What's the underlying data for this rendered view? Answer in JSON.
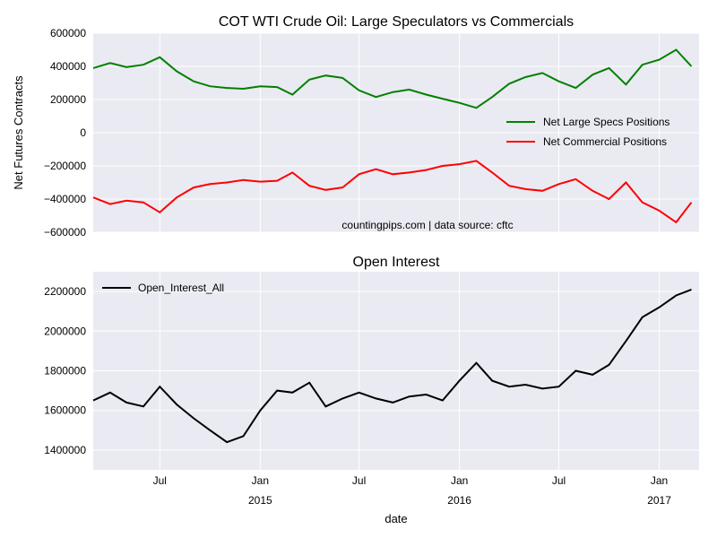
{
  "chart_data": [
    {
      "type": "line",
      "title": "COT WTI Crude Oil: Large Speculators vs Commercials",
      "ylabel": "Net Futures Contracts",
      "xlabel": "",
      "ylim": [
        -600000,
        600000
      ],
      "yticks": [
        "600000",
        "400000",
        "200000",
        "0",
        "−200000",
        "−400000",
        "−600000"
      ],
      "ytick_values": [
        600000,
        400000,
        200000,
        0,
        -200000,
        -400000,
        -600000
      ],
      "annotation": "countingpips.com | data source: cftc",
      "legend_position": "center-right",
      "grid": true,
      "series": [
        {
          "name": "Net Large Specs Positions",
          "color": "#008000",
          "x": [
            "2014-03",
            "2014-04",
            "2014-05",
            "2014-06",
            "2014-07",
            "2014-08",
            "2014-09",
            "2014-10",
            "2014-11",
            "2014-12",
            "2015-01",
            "2015-02",
            "2015-03",
            "2015-04",
            "2015-05",
            "2015-06",
            "2015-07",
            "2015-08",
            "2015-09",
            "2015-10",
            "2015-11",
            "2015-12",
            "2016-01",
            "2016-02",
            "2016-03",
            "2016-04",
            "2016-05",
            "2016-06",
            "2016-07",
            "2016-08",
            "2016-09",
            "2016-10",
            "2016-11",
            "2016-12",
            "2017-01",
            "2017-02",
            "2017-03"
          ],
          "values": [
            390000,
            420000,
            395000,
            410000,
            455000,
            370000,
            310000,
            280000,
            270000,
            265000,
            280000,
            275000,
            230000,
            320000,
            345000,
            330000,
            255000,
            215000,
            245000,
            260000,
            230000,
            205000,
            180000,
            150000,
            215000,
            295000,
            335000,
            360000,
            310000,
            270000,
            350000,
            390000,
            290000,
            410000,
            440000,
            500000,
            400000
          ]
        },
        {
          "name": "Net Commercial Positions",
          "color": "#ff0000",
          "x": [
            "2014-03",
            "2014-04",
            "2014-05",
            "2014-06",
            "2014-07",
            "2014-08",
            "2014-09",
            "2014-10",
            "2014-11",
            "2014-12",
            "2015-01",
            "2015-02",
            "2015-03",
            "2015-04",
            "2015-05",
            "2015-06",
            "2015-07",
            "2015-08",
            "2015-09",
            "2015-10",
            "2015-11",
            "2015-12",
            "2016-01",
            "2016-02",
            "2016-03",
            "2016-04",
            "2016-05",
            "2016-06",
            "2016-07",
            "2016-08",
            "2016-09",
            "2016-10",
            "2016-11",
            "2016-12",
            "2017-01",
            "2017-02",
            "2017-03"
          ],
          "values": [
            -390000,
            -430000,
            -410000,
            -420000,
            -480000,
            -390000,
            -330000,
            -310000,
            -300000,
            -285000,
            -295000,
            -290000,
            -240000,
            -320000,
            -345000,
            -330000,
            -250000,
            -220000,
            -250000,
            -240000,
            -225000,
            -200000,
            -190000,
            -170000,
            -240000,
            -320000,
            -340000,
            -350000,
            -310000,
            -280000,
            -350000,
            -400000,
            -300000,
            -420000,
            -470000,
            -540000,
            -420000
          ]
        }
      ]
    },
    {
      "type": "line",
      "title": "Open Interest",
      "xlabel": "date",
      "ylabel": "",
      "ylim": [
        1300000,
        2300000
      ],
      "yticks": [
        "2200000",
        "2000000",
        "1800000",
        "1600000",
        "1400000"
      ],
      "ytick_values": [
        2200000,
        2000000,
        1800000,
        1600000,
        1400000
      ],
      "xticks": [
        {
          "label": "Jul",
          "sub": "",
          "date": "2014-07"
        },
        {
          "label": "Jan",
          "sub": "2015",
          "date": "2015-01"
        },
        {
          "label": "Jul",
          "sub": "",
          "date": "2015-07"
        },
        {
          "label": "Jan",
          "sub": "2016",
          "date": "2016-01"
        },
        {
          "label": "Jul",
          "sub": "",
          "date": "2016-07"
        },
        {
          "label": "Jan",
          "sub": "2017",
          "date": "2017-01"
        }
      ],
      "legend_position": "upper-left",
      "grid": true,
      "series": [
        {
          "name": "Open_Interest_All",
          "color": "#000000",
          "x": [
            "2014-03",
            "2014-04",
            "2014-05",
            "2014-06",
            "2014-07",
            "2014-08",
            "2014-09",
            "2014-10",
            "2014-11",
            "2014-12",
            "2015-01",
            "2015-02",
            "2015-03",
            "2015-04",
            "2015-05",
            "2015-06",
            "2015-07",
            "2015-08",
            "2015-09",
            "2015-10",
            "2015-11",
            "2015-12",
            "2016-01",
            "2016-02",
            "2016-03",
            "2016-04",
            "2016-05",
            "2016-06",
            "2016-07",
            "2016-08",
            "2016-09",
            "2016-10",
            "2016-11",
            "2016-12",
            "2017-01",
            "2017-02",
            "2017-03"
          ],
          "values": [
            1650000,
            1690000,
            1640000,
            1620000,
            1720000,
            1630000,
            1560000,
            1500000,
            1440000,
            1470000,
            1600000,
            1700000,
            1690000,
            1740000,
            1620000,
            1660000,
            1690000,
            1660000,
            1640000,
            1670000,
            1680000,
            1650000,
            1750000,
            1840000,
            1750000,
            1720000,
            1730000,
            1710000,
            1720000,
            1800000,
            1780000,
            1830000,
            1950000,
            2070000,
            2120000,
            2180000,
            2210000
          ]
        }
      ]
    }
  ]
}
